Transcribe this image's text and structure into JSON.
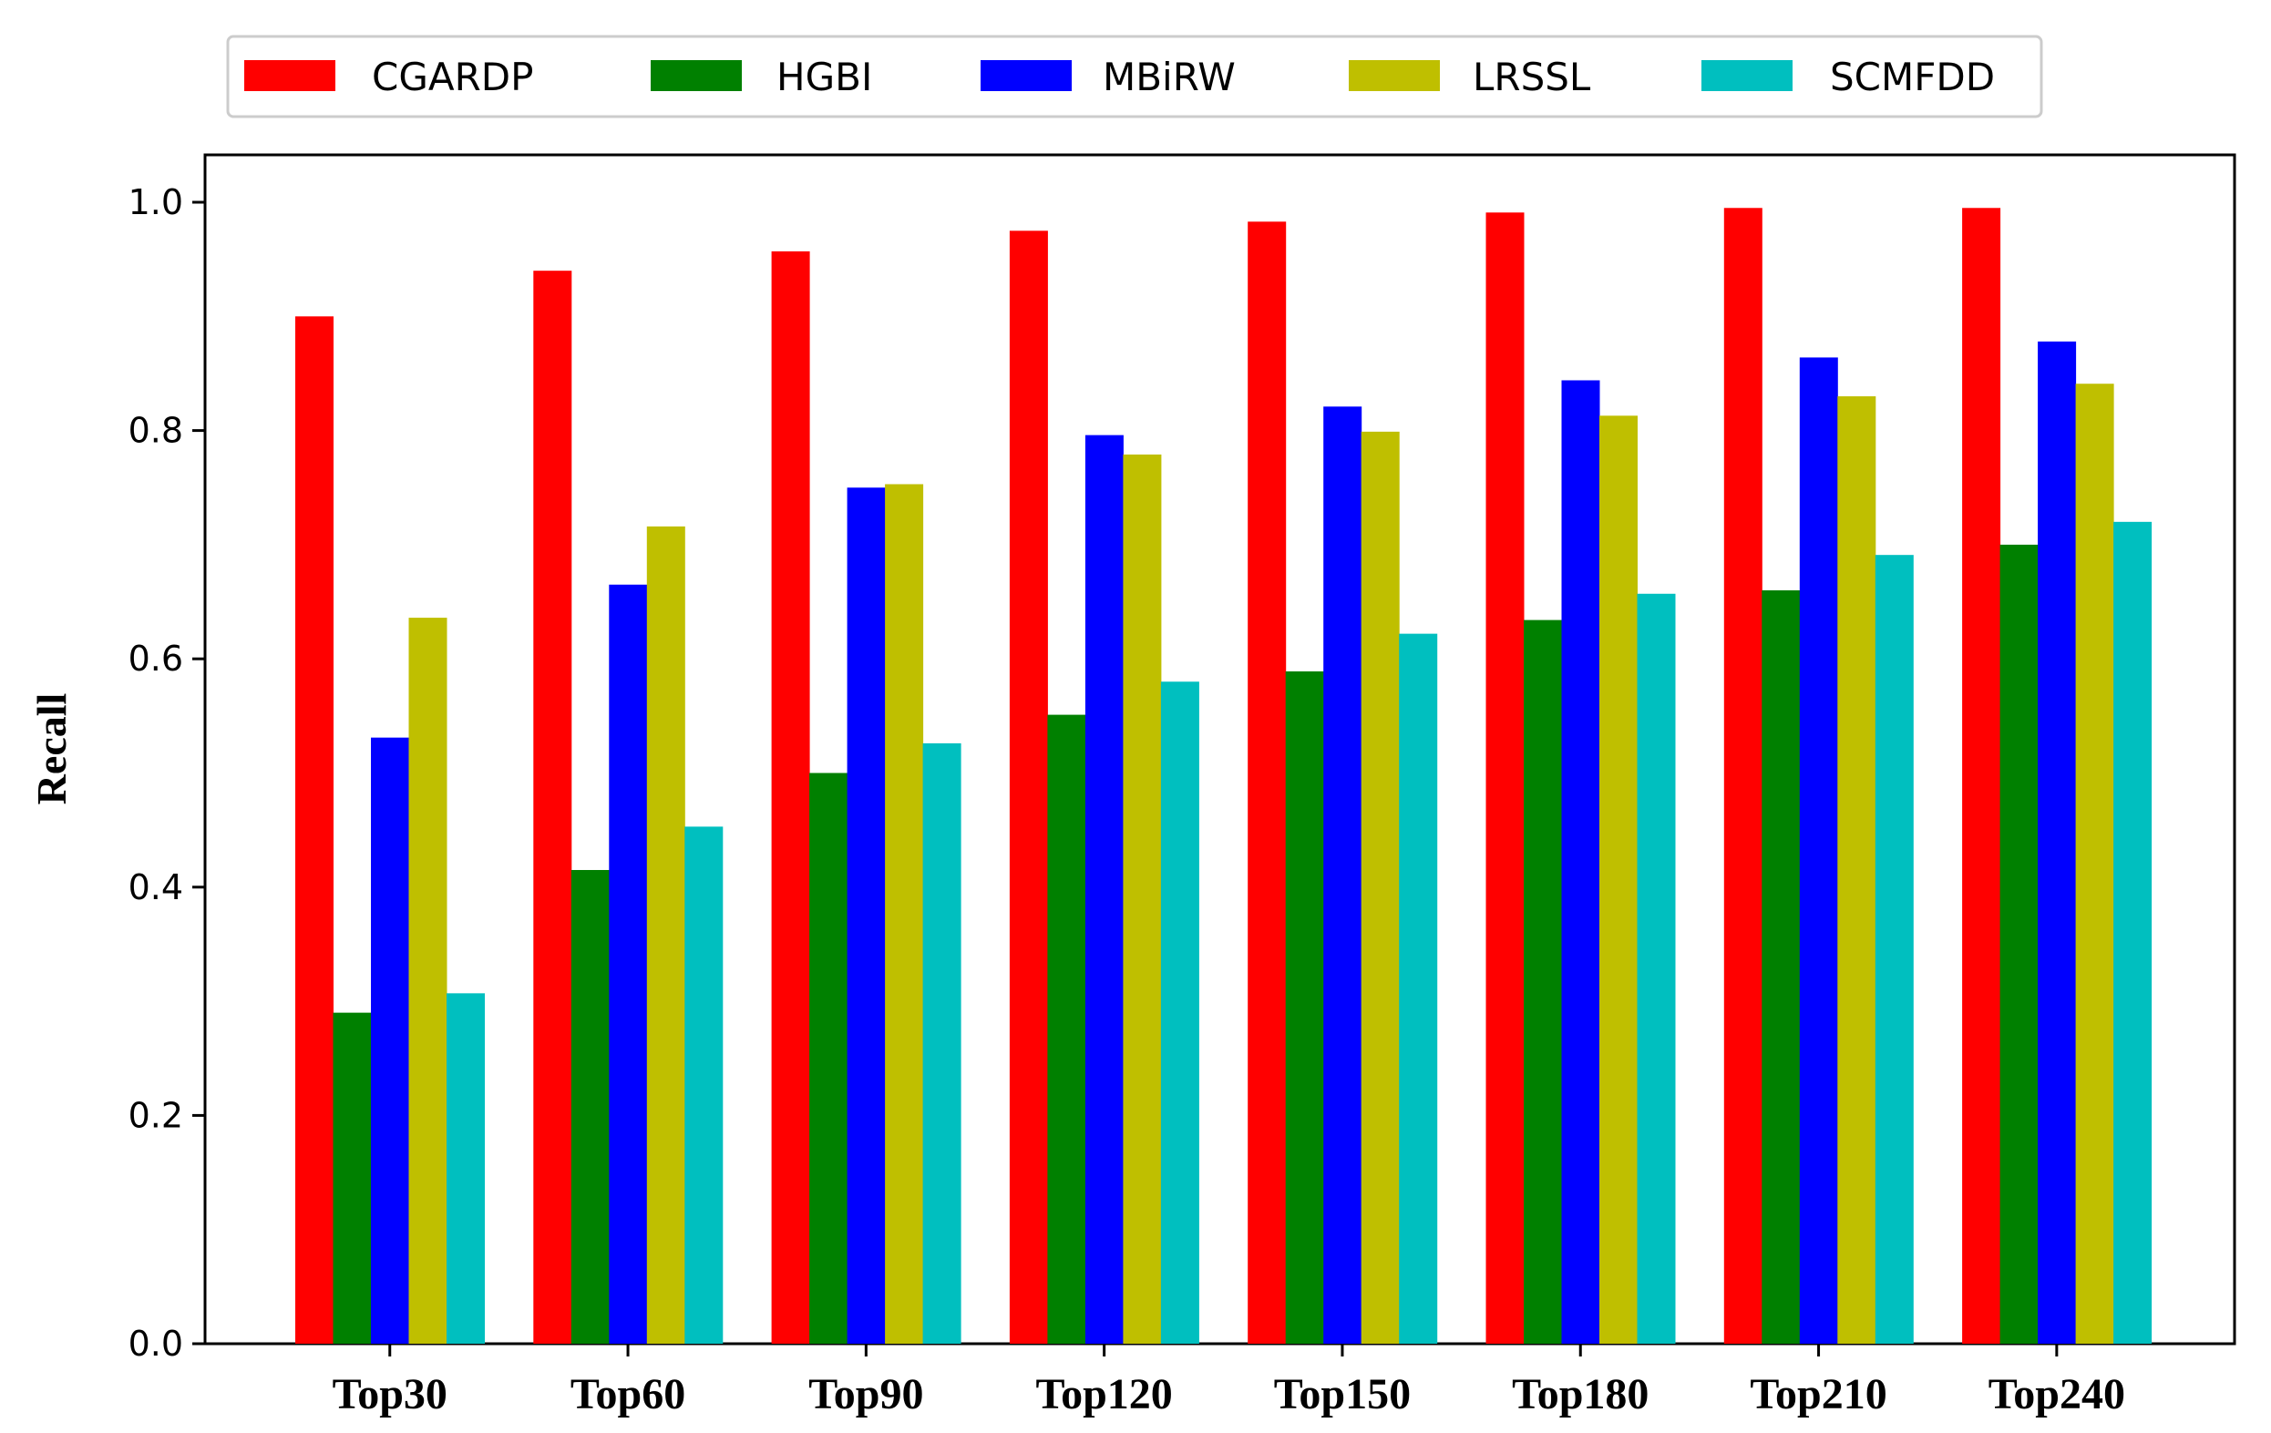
{
  "chart_data": {
    "type": "bar",
    "title": "",
    "xlabel": "",
    "ylabel": "Recall",
    "ylim": [
      0,
      1.05
    ],
    "yticks": [
      "0.0",
      "0.2",
      "0.4",
      "0.6",
      "0.8",
      "1.0"
    ],
    "grid": false,
    "legend_position": "top-center",
    "categories": [
      "Top30",
      "Top60",
      "Top90",
      "Top120",
      "Top150",
      "Top180",
      "Top210",
      "Top240"
    ],
    "series": [
      {
        "name": "CGARDP",
        "color": "#ff0000",
        "values": [
          0.9,
          0.94,
          0.957,
          0.975,
          0.983,
          0.991,
          0.995,
          0.995
        ]
      },
      {
        "name": "HGBI",
        "color": "#008000",
        "values": [
          0.29,
          0.415,
          0.5,
          0.551,
          0.589,
          0.634,
          0.66,
          0.7
        ]
      },
      {
        "name": "MBiRW",
        "color": "#0000ff",
        "values": [
          0.531,
          0.665,
          0.75,
          0.796,
          0.821,
          0.844,
          0.864,
          0.878
        ]
      },
      {
        "name": "LRSSL",
        "color": "#bfbf00",
        "values": [
          0.636,
          0.716,
          0.753,
          0.779,
          0.799,
          0.813,
          0.83,
          0.841
        ]
      },
      {
        "name": "SCMFDD",
        "color": "#00bfbf",
        "values": [
          0.307,
          0.453,
          0.526,
          0.58,
          0.622,
          0.657,
          0.691,
          0.72
        ]
      }
    ]
  }
}
